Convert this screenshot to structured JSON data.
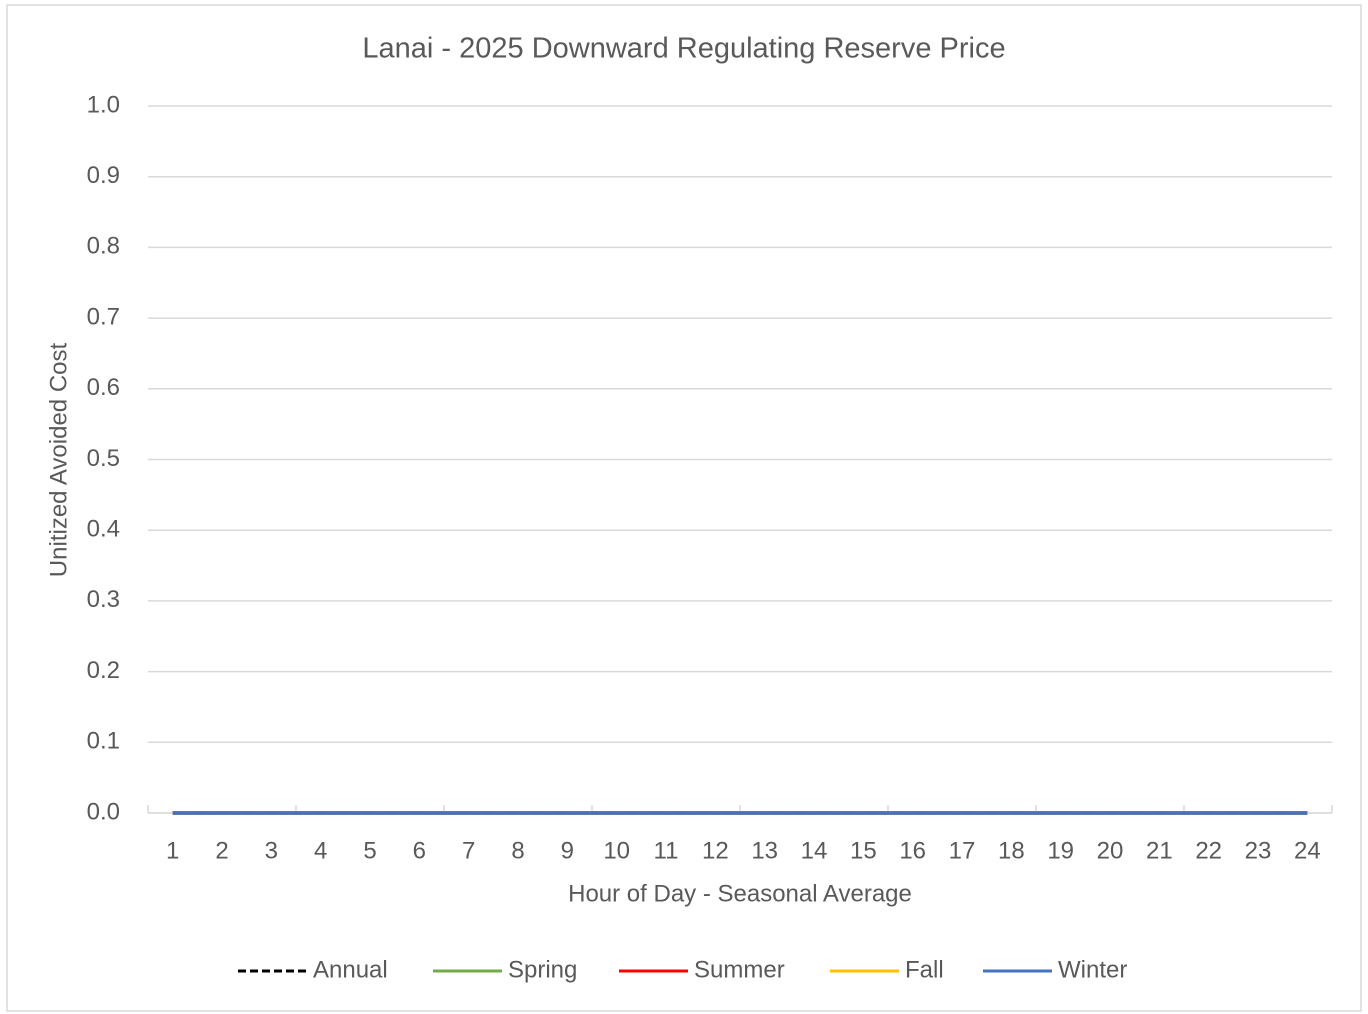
{
  "chart_data": {
    "type": "line",
    "title": "Lanai - 2025 Downward Regulating Reserve Price",
    "x_label": "Hour of Day - Seasonal Average",
    "y_label": "Unitized Avoided Cost",
    "categories": [
      "1",
      "2",
      "3",
      "4",
      "5",
      "6",
      "7",
      "8",
      "9",
      "10",
      "11",
      "12",
      "13",
      "14",
      "15",
      "16",
      "17",
      "18",
      "19",
      "20",
      "21",
      "22",
      "23",
      "24"
    ],
    "series": [
      {
        "name": "Annual",
        "color": "#000000",
        "line_style": "dashed",
        "values": [
          0,
          0,
          0,
          0,
          0,
          0,
          0,
          0,
          0,
          0,
          0,
          0,
          0,
          0,
          0,
          0,
          0,
          0,
          0,
          0,
          0,
          0,
          0,
          0
        ]
      },
      {
        "name": "Spring",
        "color": "#70ad47",
        "line_style": "solid",
        "values": [
          0,
          0,
          0,
          0,
          0,
          0,
          0,
          0,
          0,
          0,
          0,
          0,
          0,
          0,
          0,
          0,
          0,
          0,
          0,
          0,
          0,
          0,
          0,
          0
        ]
      },
      {
        "name": "Summer",
        "color": "#ff0000",
        "line_style": "solid",
        "values": [
          0,
          0,
          0,
          0,
          0,
          0,
          0,
          0,
          0,
          0,
          0,
          0,
          0,
          0,
          0,
          0,
          0,
          0,
          0,
          0,
          0,
          0,
          0,
          0
        ]
      },
      {
        "name": "Fall",
        "color": "#ffc000",
        "line_style": "solid",
        "values": [
          0,
          0,
          0,
          0,
          0,
          0,
          0,
          0,
          0,
          0,
          0,
          0,
          0,
          0,
          0,
          0,
          0,
          0,
          0,
          0,
          0,
          0,
          0,
          0
        ]
      },
      {
        "name": "Winter",
        "color": "#4472c4",
        "line_style": "solid",
        "values": [
          0,
          0,
          0,
          0,
          0,
          0,
          0,
          0,
          0,
          0,
          0,
          0,
          0,
          0,
          0,
          0,
          0,
          0,
          0,
          0,
          0,
          0,
          0,
          0
        ]
      }
    ],
    "ylim": [
      0,
      1
    ],
    "yticks": [
      {
        "value": 0,
        "label": "0.0"
      },
      0.1,
      0.2,
      0.3,
      0.4,
      0.5,
      0.6,
      0.7,
      0.8,
      0.9,
      {
        "value": 1,
        "label": "1.0"
      }
    ],
    "grid": true,
    "legend": "bottom"
  }
}
